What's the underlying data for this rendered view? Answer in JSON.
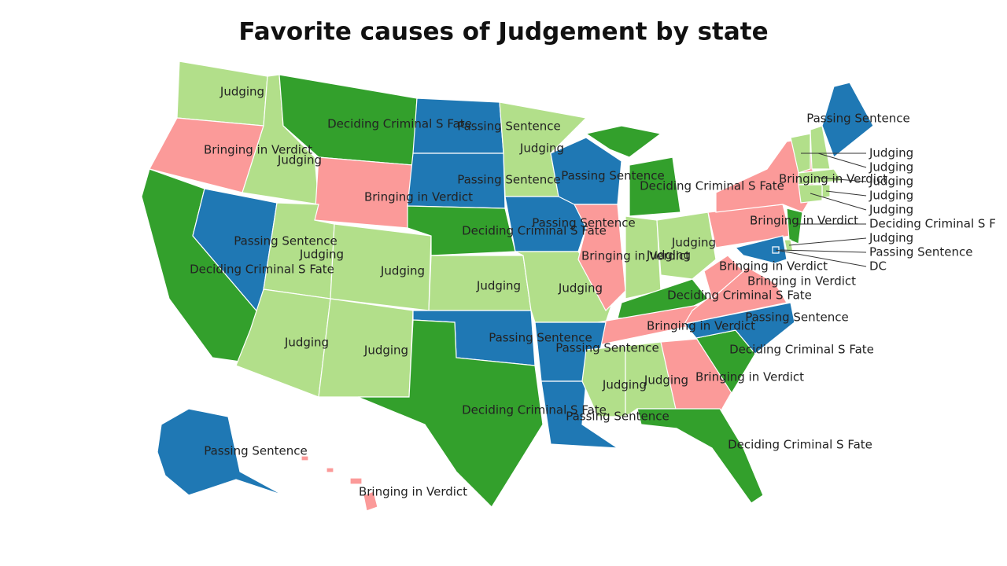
{
  "title": "Favorite causes of Judgement by state",
  "states": [
    {
      "label": "Judging",
      "color": "#b2df8a"
    },
    {
      "label": "Bringing in Verdict",
      "color": "#fb9a99"
    },
    {
      "label": "Deciding Criminal S Fate",
      "color": "#33a02c"
    },
    {
      "label": "Passing Sentence",
      "color": "#1f78b4"
    },
    {
      "label": "Judging",
      "color": "#b2df8a"
    },
    {
      "label": "Deciding Criminal S Fate",
      "color": "#33a02c"
    },
    {
      "label": "Bringing in Verdict",
      "color": "#fb9a99"
    },
    {
      "label": "Judging",
      "color": "#b2df8a"
    },
    {
      "label": "Judging",
      "color": "#b2df8a"
    },
    {
      "label": "Judging",
      "color": "#b2df8a"
    },
    {
      "label": "Judging",
      "color": "#b2df8a"
    },
    {
      "label": "Passing Sentence",
      "color": "#1f78b4"
    },
    {
      "label": "Passing Sentence",
      "color": "#1f78b4"
    },
    {
      "label": "Deciding Criminal S Fate",
      "color": "#33a02c"
    },
    {
      "label": "Judging",
      "color": "#b2df8a"
    },
    {
      "label": "Passing Sentence",
      "color": "#1f78b4"
    },
    {
      "label": "Deciding Criminal S Fate",
      "color": "#33a02c"
    },
    {
      "label": "Judging",
      "color": "#b2df8a"
    },
    {
      "label": "Passing Sentence",
      "color": "#1f78b4"
    },
    {
      "label": "Judging",
      "color": "#b2df8a"
    },
    {
      "label": "Passing Sentence",
      "color": "#1f78b4"
    },
    {
      "label": "Bringing in Verdict",
      "color": "#fb9a99"
    },
    {
      "label": "Deciding Criminal S Fate",
      "color": "#33a02c"
    },
    {
      "label": "Judging",
      "color": "#b2df8a"
    },
    {
      "label": "Judging",
      "color": "#b2df8a"
    },
    {
      "label": "Deciding Criminal S Fate",
      "color": "#33a02c"
    },
    {
      "label": "Bringing in Verdict",
      "color": "#fb9a99"
    },
    {
      "label": "Passing Sentence",
      "color": "#1f78b4"
    },
    {
      "label": "Passing Sentence",
      "color": "#1f78b4"
    },
    {
      "label": "Judging",
      "color": "#b2df8a"
    },
    {
      "label": "Judging",
      "color": "#b2df8a"
    },
    {
      "label": "Bringing in Verdict",
      "color": "#fb9a99"
    },
    {
      "label": "Deciding Criminal S Fate",
      "color": "#33a02c"
    },
    {
      "label": "Deciding Criminal S Fate",
      "color": "#33a02c"
    },
    {
      "label": "Passing Sentence",
      "color": "#1f78b4"
    },
    {
      "label": "Bringing in Verdict",
      "color": "#fb9a99"
    },
    {
      "label": "Bringing in Verdict",
      "color": "#fb9a99"
    },
    {
      "label": "Bringing in Verdict",
      "color": "#fb9a99"
    },
    {
      "label": "Bringing in Verdict",
      "color": "#fb9a99"
    },
    {
      "label": "Judging",
      "color": "#b2df8a"
    },
    {
      "label": "Judging",
      "color": "#b2df8a"
    },
    {
      "label": "Passing Sentence",
      "color": "#1f78b4"
    },
    {
      "label": "Judging",
      "color": "#b2df8a"
    },
    {
      "label": "Judging",
      "color": "#b2df8a"
    },
    {
      "label": "Judging",
      "color": "#b2df8a"
    },
    {
      "label": "Deciding Criminal S F",
      "color": "#33a02c"
    },
    {
      "label": "Judging",
      "color": "#b2df8a"
    },
    {
      "label": "Passing Sentence",
      "color": "#1f78b4"
    },
    {
      "label": "DC",
      "color": "#1f78b4"
    },
    {
      "label": "Passing Sentence",
      "color": "#1f78b4"
    },
    {
      "label": "Bringing in Verdict",
      "color": "#fb9a99"
    }
  ]
}
